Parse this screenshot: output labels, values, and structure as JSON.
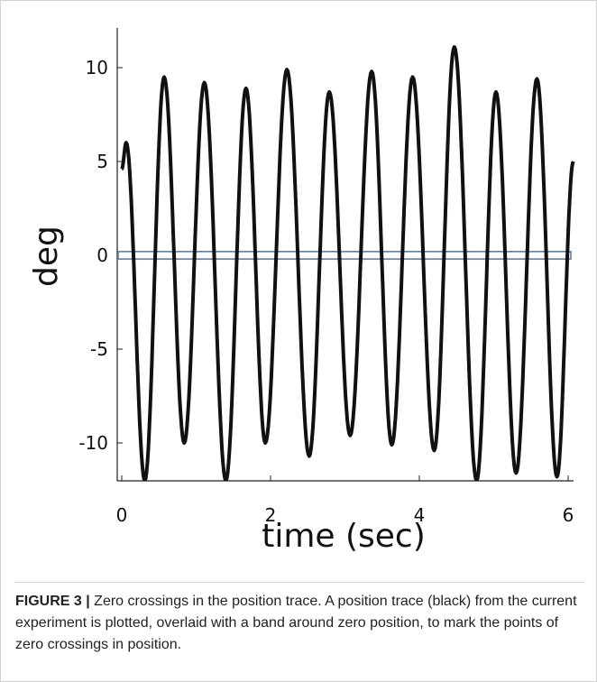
{
  "chart_data": {
    "type": "line",
    "title": "",
    "xlabel": "time (sec)",
    "ylabel": "deg",
    "xlim": [
      0,
      6
    ],
    "ylim": [
      -12,
      12
    ],
    "xticks": [
      0,
      2,
      4,
      6
    ],
    "yticks": [
      10,
      5,
      0,
      -5,
      -10
    ],
    "grid": false,
    "zero_band": {
      "lower": -0.15,
      "upper": 0.15,
      "color": "#5b7fa6"
    },
    "series": [
      {
        "color": "#111111",
        "peaks": [
          [
            0.0,
            4.6
          ],
          [
            0.06,
            6.0
          ],
          [
            0.31,
            -12.0
          ],
          [
            0.57,
            9.5
          ],
          [
            0.84,
            -10.0
          ],
          [
            1.11,
            9.2
          ],
          [
            1.4,
            -12.0
          ],
          [
            1.67,
            8.9
          ],
          [
            1.93,
            -10.0
          ],
          [
            2.22,
            9.9
          ],
          [
            2.52,
            -10.7
          ],
          [
            2.79,
            8.7
          ],
          [
            3.07,
            -9.6
          ],
          [
            3.36,
            9.8
          ],
          [
            3.63,
            -10.1
          ],
          [
            3.91,
            9.5
          ],
          [
            4.2,
            -10.4
          ],
          [
            4.47,
            11.1
          ],
          [
            4.77,
            -12.0
          ],
          [
            5.03,
            8.7
          ],
          [
            5.3,
            -11.6
          ],
          [
            5.58,
            9.4
          ],
          [
            5.85,
            -11.8
          ],
          [
            6.07,
            5.0
          ]
        ]
      }
    ]
  },
  "caption": {
    "label": "FIGURE 3 |",
    "text": " Zero crossings in the position trace. A position trace (black) from the current experiment is plotted, overlaid with a band around zero position, to mark the points of zero crossings in position."
  }
}
